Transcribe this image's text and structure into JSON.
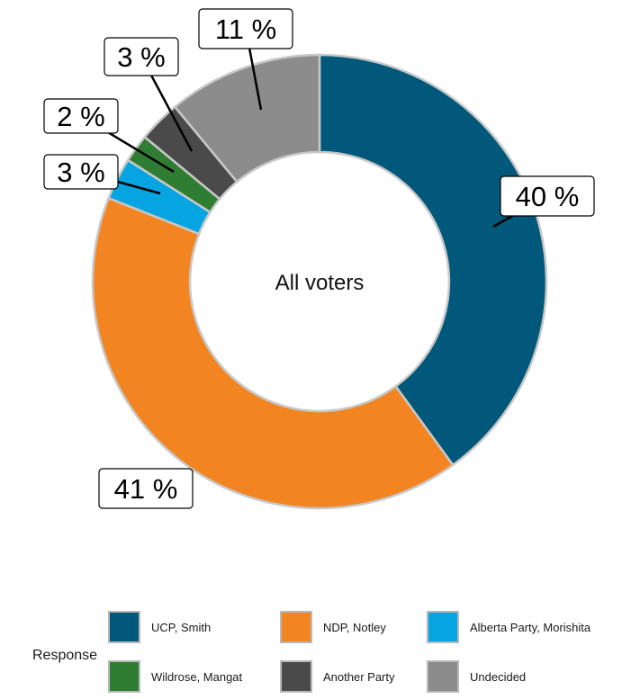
{
  "chart_data": {
    "type": "pie",
    "variant": "donut",
    "center_label": "All voters",
    "categories": [
      "UCP, Smith",
      "NDP, Notley",
      "Alberta Party, Morishita",
      "Wildrose, Mangat",
      "Another Party",
      "Undecided"
    ],
    "values": [
      40,
      41,
      3,
      2,
      3,
      11
    ],
    "labels": [
      "40 %",
      "41 %",
      "3 %",
      "2 %",
      "3 %",
      "11 %"
    ],
    "colors": [
      "#02587a",
      "#f28522",
      "#06a4e0",
      "#2f7d32",
      "#4a4a4a",
      "#8c8c8c"
    ],
    "legend": {
      "title": "Response",
      "placement": "bottom"
    }
  }
}
